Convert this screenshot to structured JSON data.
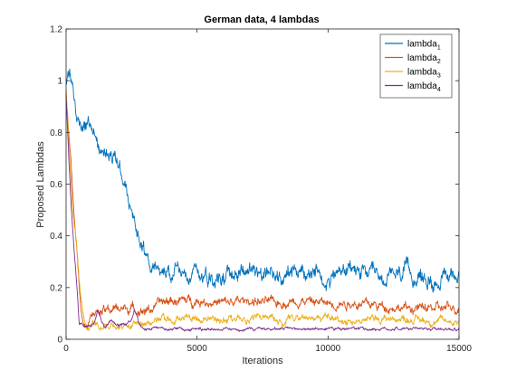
{
  "chart_data": {
    "type": "line",
    "title": "German data, 4 lambdas",
    "xlabel": "Iterations",
    "ylabel": "Proposed Lambdas",
    "xlim": [
      0,
      15000
    ],
    "ylim": [
      0,
      1.2
    ],
    "xticks": [
      0,
      5000,
      10000,
      15000
    ],
    "xtick_labels": [
      "0",
      "5000",
      "10000",
      "15000"
    ],
    "yticks": [
      0,
      0.2,
      0.4,
      0.6,
      0.8,
      1,
      1.2
    ],
    "ytick_labels": [
      "0",
      "0.2",
      "0.4",
      "0.6",
      "0.8",
      "1",
      "1.2"
    ],
    "grid": false,
    "legend_position": "top-right",
    "series": [
      {
        "name": "lambda",
        "subscript": "1",
        "color": "#0072BD",
        "noise": 0.02,
        "x": [
          0,
          100,
          200,
          300,
          500,
          700,
          900,
          1100,
          1300,
          1600,
          1900,
          2200,
          2400,
          2600,
          2800,
          3000,
          3200,
          3500,
          3800,
          4200,
          4600,
          5000,
          5500,
          6000,
          6500,
          7000,
          7500,
          8000,
          8500,
          9000,
          9500,
          10000,
          10500,
          11000,
          11500,
          12000,
          12500,
          13000,
          13500,
          14000,
          14500,
          15000
        ],
        "y": [
          0.98,
          1.02,
          0.99,
          0.93,
          0.85,
          0.84,
          0.83,
          0.8,
          0.76,
          0.73,
          0.69,
          0.62,
          0.52,
          0.45,
          0.4,
          0.34,
          0.3,
          0.27,
          0.25,
          0.26,
          0.27,
          0.26,
          0.25,
          0.24,
          0.26,
          0.27,
          0.25,
          0.24,
          0.27,
          0.26,
          0.25,
          0.24,
          0.26,
          0.27,
          0.25,
          0.23,
          0.24,
          0.26,
          0.24,
          0.22,
          0.24,
          0.25
        ]
      },
      {
        "name": "lambda",
        "subscript": "2",
        "color": "#D95319",
        "noise": 0.012,
        "x": [
          0,
          150,
          300,
          450,
          550,
          650,
          800,
          1000,
          1500,
          2000,
          2500,
          3000,
          3300,
          3600,
          4000,
          5000,
          6000,
          7000,
          8000,
          9000,
          10000,
          11000,
          12000,
          13000,
          14000,
          15000
        ],
        "y": [
          0.95,
          0.72,
          0.5,
          0.28,
          0.14,
          0.07,
          0.06,
          0.08,
          0.11,
          0.12,
          0.12,
          0.11,
          0.12,
          0.14,
          0.15,
          0.15,
          0.14,
          0.15,
          0.14,
          0.15,
          0.14,
          0.14,
          0.13,
          0.12,
          0.12,
          0.12
        ]
      },
      {
        "name": "lambda",
        "subscript": "3",
        "color": "#EDB120",
        "noise": 0.01,
        "x": [
          0,
          100,
          250,
          400,
          550,
          700,
          800,
          1000,
          1500,
          2000,
          2500,
          3000,
          3300,
          3600,
          4000,
          5000,
          6000,
          7000,
          8000,
          9000,
          10000,
          11000,
          12000,
          13000,
          14000,
          15000
        ],
        "y": [
          0.95,
          0.75,
          0.5,
          0.36,
          0.18,
          0.08,
          0.06,
          0.06,
          0.05,
          0.05,
          0.05,
          0.05,
          0.07,
          0.08,
          0.08,
          0.08,
          0.08,
          0.08,
          0.07,
          0.09,
          0.08,
          0.07,
          0.08,
          0.08,
          0.07,
          0.07
        ]
      },
      {
        "name": "lambda",
        "subscript": "4",
        "color": "#7E2F8E",
        "noise": 0.004,
        "x": [
          0,
          100,
          200,
          300,
          400,
          450,
          500,
          700,
          900,
          1100,
          1200,
          1300,
          1400,
          1500,
          1700,
          2000,
          2300,
          2500,
          2600,
          2700,
          2800,
          2900,
          3000,
          4000,
          5000,
          6000,
          7000,
          8000,
          9000,
          10000,
          11000,
          12000,
          13000,
          14000,
          15000
        ],
        "y": [
          0.95,
          0.7,
          0.5,
          0.35,
          0.22,
          0.15,
          0.06,
          0.05,
          0.05,
          0.07,
          0.11,
          0.09,
          0.06,
          0.04,
          0.07,
          0.05,
          0.06,
          0.07,
          0.11,
          0.09,
          0.06,
          0.05,
          0.04,
          0.04,
          0.04,
          0.04,
          0.04,
          0.04,
          0.04,
          0.04,
          0.04,
          0.04,
          0.04,
          0.04,
          0.04
        ]
      }
    ]
  }
}
